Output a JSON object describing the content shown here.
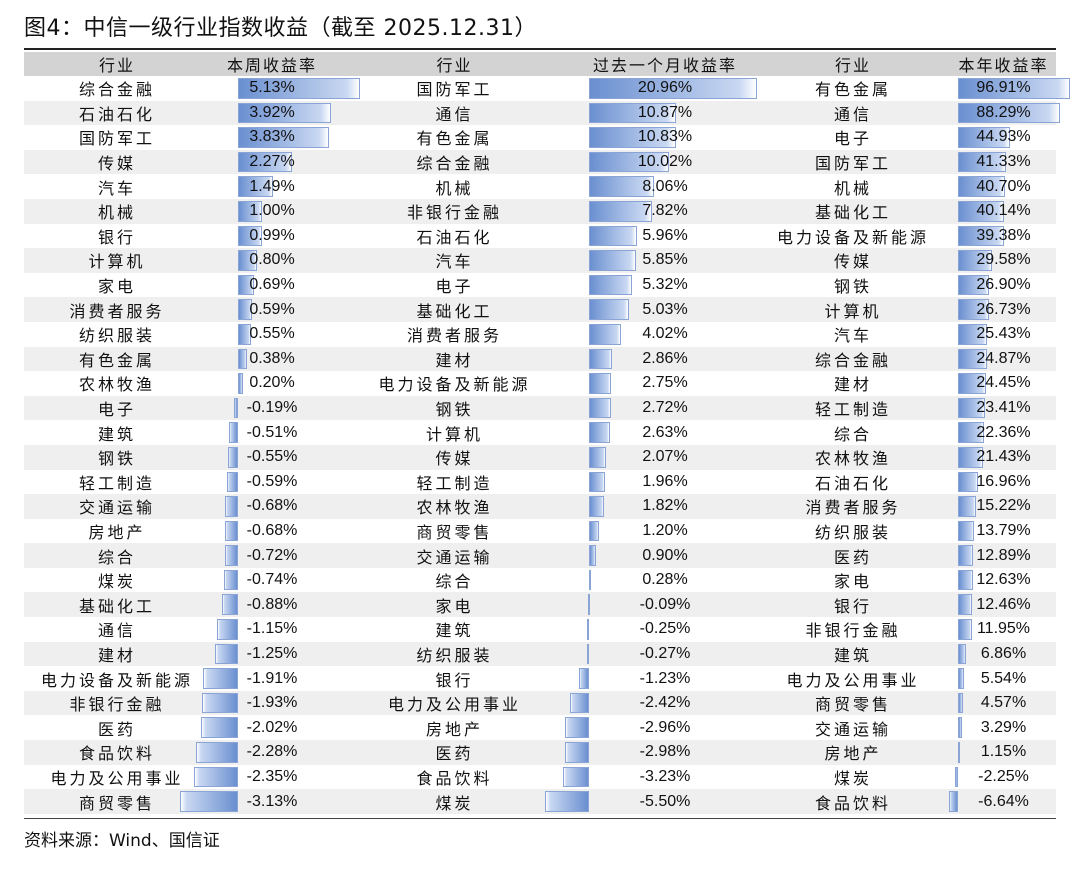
{
  "title": "图4：中信一级行业指数收益（截至 2025.12.31）",
  "source": "资料来源：Wind、国信证",
  "headers": [
    "行业",
    "本周收益率",
    "行业",
    "过去一个月收益率",
    "行业",
    "本年收益率"
  ],
  "chart_data": {
    "type": "table",
    "weekly": [
      [
        "综合金融",
        5.13
      ],
      [
        "石油石化",
        3.92
      ],
      [
        "国防军工",
        3.83
      ],
      [
        "传媒",
        2.27
      ],
      [
        "汽车",
        1.49
      ],
      [
        "机械",
        1.0
      ],
      [
        "银行",
        0.99
      ],
      [
        "计算机",
        0.8
      ],
      [
        "家电",
        0.69
      ],
      [
        "消费者服务",
        0.59
      ],
      [
        "纺织服装",
        0.55
      ],
      [
        "有色金属",
        0.38
      ],
      [
        "农林牧渔",
        0.2
      ],
      [
        "电子",
        -0.19
      ],
      [
        "建筑",
        -0.51
      ],
      [
        "钢铁",
        -0.55
      ],
      [
        "轻工制造",
        -0.59
      ],
      [
        "交通运输",
        -0.68
      ],
      [
        "房地产",
        -0.68
      ],
      [
        "综合",
        -0.72
      ],
      [
        "煤炭",
        -0.74
      ],
      [
        "基础化工",
        -0.88
      ],
      [
        "通信",
        -1.15
      ],
      [
        "建材",
        -1.25
      ],
      [
        "电力设备及新能源",
        -1.91
      ],
      [
        "非银行金融",
        -1.93
      ],
      [
        "医药",
        -2.02
      ],
      [
        "食品饮料",
        -2.28
      ],
      [
        "电力及公用事业",
        -2.35
      ],
      [
        "商贸零售",
        -3.13
      ]
    ],
    "monthly": [
      [
        "国防军工",
        20.96
      ],
      [
        "通信",
        10.87
      ],
      [
        "有色金属",
        10.83
      ],
      [
        "综合金融",
        10.02
      ],
      [
        "机械",
        8.06
      ],
      [
        "非银行金融",
        7.82
      ],
      [
        "石油石化",
        5.96
      ],
      [
        "汽车",
        5.85
      ],
      [
        "电子",
        5.32
      ],
      [
        "基础化工",
        5.03
      ],
      [
        "消费者服务",
        4.02
      ],
      [
        "建材",
        2.86
      ],
      [
        "电力设备及新能源",
        2.75
      ],
      [
        "钢铁",
        2.72
      ],
      [
        "计算机",
        2.63
      ],
      [
        "传媒",
        2.07
      ],
      [
        "轻工制造",
        1.96
      ],
      [
        "农林牧渔",
        1.82
      ],
      [
        "商贸零售",
        1.2
      ],
      [
        "交通运输",
        0.9
      ],
      [
        "综合",
        0.28
      ],
      [
        "家电",
        -0.09
      ],
      [
        "建筑",
        -0.25
      ],
      [
        "纺织服装",
        -0.27
      ],
      [
        "银行",
        -1.23
      ],
      [
        "电力及公用事业",
        -2.42
      ],
      [
        "房地产",
        -2.96
      ],
      [
        "医药",
        -2.98
      ],
      [
        "食品饮料",
        -3.23
      ],
      [
        "煤炭",
        -5.5
      ]
    ],
    "ytd": [
      [
        "有色金属",
        96.91
      ],
      [
        "通信",
        88.29
      ],
      [
        "电子",
        44.93
      ],
      [
        "国防军工",
        41.33
      ],
      [
        "机械",
        40.7
      ],
      [
        "基础化工",
        40.14
      ],
      [
        "电力设备及新能源",
        39.38
      ],
      [
        "传媒",
        29.58
      ],
      [
        "钢铁",
        26.9
      ],
      [
        "计算机",
        26.73
      ],
      [
        "汽车",
        25.43
      ],
      [
        "综合金融",
        24.87
      ],
      [
        "建材",
        24.45
      ],
      [
        "轻工制造",
        23.41
      ],
      [
        "综合",
        22.36
      ],
      [
        "农林牧渔",
        21.43
      ],
      [
        "石油石化",
        16.96
      ],
      [
        "消费者服务",
        15.22
      ],
      [
        "纺织服装",
        13.79
      ],
      [
        "医药",
        12.89
      ],
      [
        "家电",
        12.63
      ],
      [
        "银行",
        12.46
      ],
      [
        "非银行金融",
        11.95
      ],
      [
        "建筑",
        6.86
      ],
      [
        "电力及公用事业",
        5.54
      ],
      [
        "商贸零售",
        4.57
      ],
      [
        "交通运输",
        3.29
      ],
      [
        "房地产",
        1.15
      ],
      [
        "煤炭",
        -2.25
      ],
      [
        "食品饮料",
        -6.64
      ]
    ]
  }
}
